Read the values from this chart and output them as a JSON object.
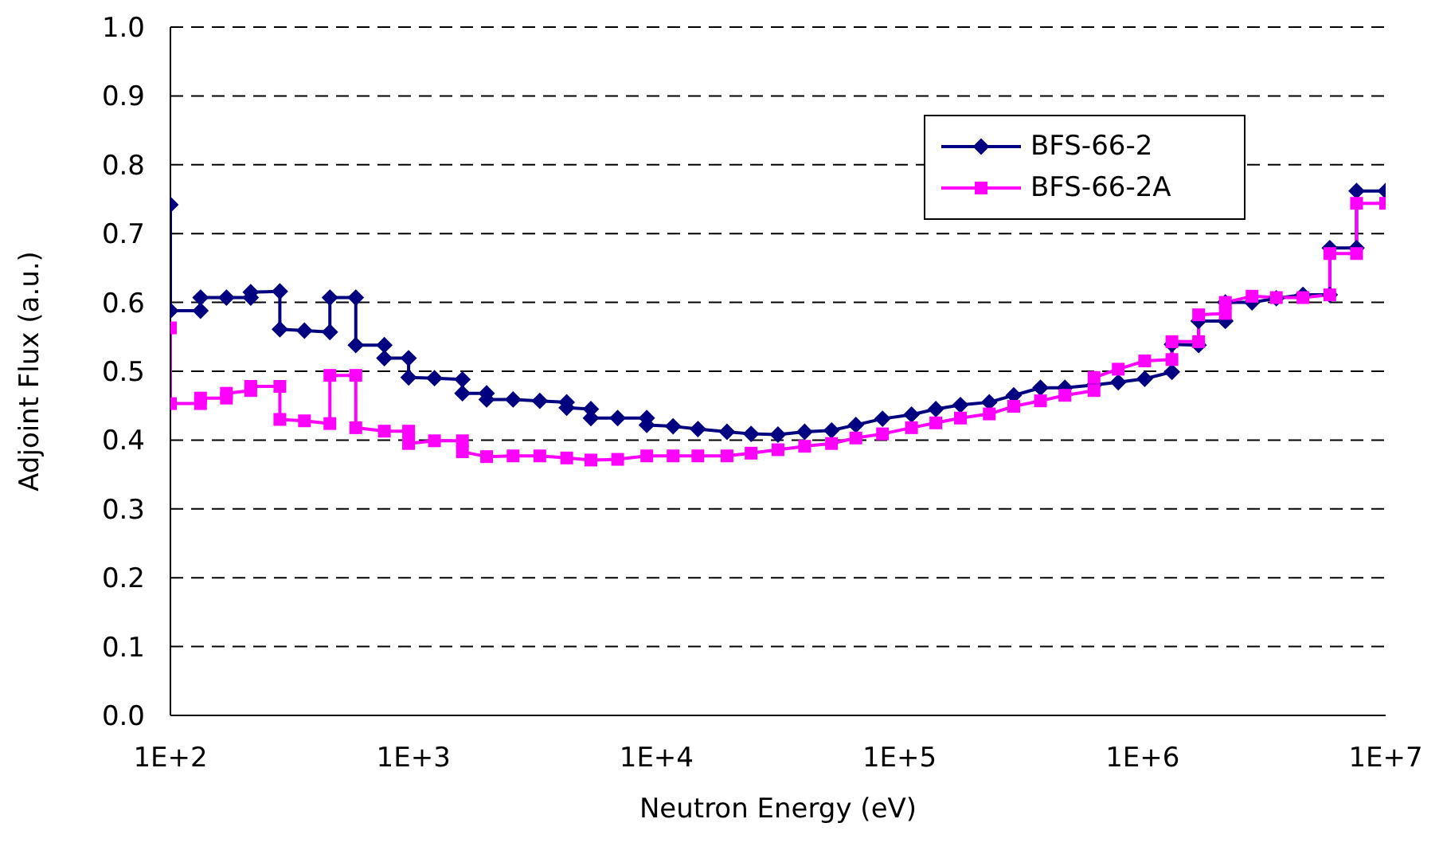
{
  "chart_data": {
    "type": "line",
    "xlabel": "Neutron Energy (eV)",
    "ylabel": "Adjoint Flux (a.u.)",
    "log": "x",
    "xlim": [
      100,
      10000000
    ],
    "xticks": [
      {
        "value": 100,
        "label": "1E+2"
      },
      {
        "value": 1000,
        "label": "1E+3"
      },
      {
        "value": 10000,
        "label": "1E+4"
      },
      {
        "value": 100000,
        "label": "1E+5"
      },
      {
        "value": 1000000,
        "label": "1E+6"
      },
      {
        "value": 10000000,
        "label": "1E+7"
      }
    ],
    "ylim": [
      0,
      1
    ],
    "yticks": [
      {
        "value": 0,
        "label": "0.0"
      },
      {
        "value": 0.1,
        "label": "0.1"
      },
      {
        "value": 0.2,
        "label": "0.2"
      },
      {
        "value": 0.3,
        "label": "0.3"
      },
      {
        "value": 0.4,
        "label": "0.4"
      },
      {
        "value": 0.5,
        "label": "0.5"
      },
      {
        "value": 0.6,
        "label": "0.6"
      },
      {
        "value": 0.7,
        "label": "0.7"
      },
      {
        "value": 0.8,
        "label": "0.8"
      },
      {
        "value": 0.9,
        "label": "0.9"
      },
      {
        "value": 1,
        "label": "1.0"
      }
    ],
    "grid": "y",
    "legend": "top right",
    "line_style": "solid",
    "series": [
      {
        "name": "BFS-66-2",
        "color": "#000080",
        "marker": "diamond",
        "x": [
          100,
          100,
          133,
          133,
          170,
          214,
          214,
          282,
          282,
          356,
          453,
          453,
          579,
          579,
          759,
          759,
          955,
          955,
          1220,
          1590,
          1590,
          2000,
          2000,
          2570,
          3310,
          4270,
          4270,
          5370,
          5370,
          6920,
          9120,
          9120,
          11700,
          14800,
          19500,
          24500,
          31600,
          40700,
          52500,
          66100,
          85100,
          112000,
          141000,
          178000,
          234000,
          295000,
          380000,
          479000,
          631000,
          794000,
          1020000,
          1320000,
          1320000,
          1700000,
          1700000,
          2190000,
          2190000,
          2820000,
          3550000,
          4570000,
          5890000,
          5890000,
          7590000,
          7590000,
          10000000
        ],
        "values": [
          0.742,
          0.588,
          0.588,
          0.607,
          0.607,
          0.607,
          0.615,
          0.616,
          0.561,
          0.559,
          0.557,
          0.607,
          0.607,
          0.538,
          0.538,
          0.519,
          0.519,
          0.491,
          0.49,
          0.488,
          0.468,
          0.468,
          0.459,
          0.459,
          0.457,
          0.455,
          0.447,
          0.445,
          0.432,
          0.432,
          0.432,
          0.422,
          0.42,
          0.416,
          0.412,
          0.409,
          0.408,
          0.412,
          0.414,
          0.422,
          0.431,
          0.437,
          0.445,
          0.451,
          0.455,
          0.465,
          0.476,
          0.476,
          0.48,
          0.484,
          0.489,
          0.499,
          0.539,
          0.538,
          0.573,
          0.573,
          0.6,
          0.6,
          0.606,
          0.611,
          0.611,
          0.679,
          0.679,
          0.762,
          0.762
        ]
      },
      {
        "name": "BFS-66-2A",
        "color": "#ff00ff",
        "marker": "square",
        "x": [
          100,
          100,
          133,
          133,
          170,
          170,
          214,
          214,
          282,
          282,
          356,
          453,
          453,
          579,
          579,
          759,
          955,
          955,
          1220,
          1590,
          1590,
          2000,
          2570,
          3310,
          4270,
          5370,
          6920,
          9120,
          11700,
          14800,
          19500,
          24500,
          31600,
          40700,
          52500,
          66100,
          85100,
          112000,
          141000,
          178000,
          234000,
          295000,
          380000,
          479000,
          631000,
          631000,
          794000,
          1020000,
          1320000,
          1320000,
          1700000,
          1700000,
          2190000,
          2190000,
          2820000,
          3550000,
          4570000,
          5890000,
          5890000,
          7590000,
          7590000,
          10000000
        ],
        "values": [
          0.563,
          0.453,
          0.453,
          0.461,
          0.461,
          0.468,
          0.472,
          0.478,
          0.478,
          0.43,
          0.428,
          0.424,
          0.494,
          0.494,
          0.418,
          0.413,
          0.413,
          0.395,
          0.399,
          0.399,
          0.383,
          0.376,
          0.377,
          0.377,
          0.374,
          0.371,
          0.372,
          0.377,
          0.377,
          0.377,
          0.377,
          0.381,
          0.386,
          0.391,
          0.395,
          0.403,
          0.409,
          0.418,
          0.425,
          0.432,
          0.438,
          0.449,
          0.457,
          0.465,
          0.472,
          0.491,
          0.503,
          0.515,
          0.517,
          0.543,
          0.543,
          0.582,
          0.584,
          0.6,
          0.609,
          0.607,
          0.607,
          0.611,
          0.671,
          0.671,
          0.744,
          0.744
        ]
      }
    ]
  }
}
